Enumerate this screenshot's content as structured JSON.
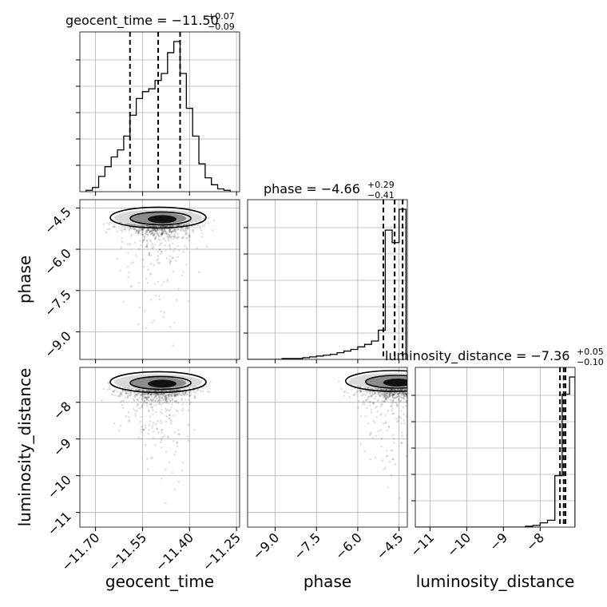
{
  "chart_data": {
    "type": "corner",
    "parameters": [
      "geocent_time",
      "phase",
      "luminosity_distance"
    ],
    "axis_labels": [
      "geocent_time",
      "phase",
      "luminosity_distance"
    ],
    "titles": [
      {
        "text": "geocent_time = −11.50",
        "sup": "+0.07",
        "sub": "−0.09"
      },
      {
        "text": "phase = −4.66",
        "sup": "+0.29",
        "sub": "−0.41"
      },
      {
        "text": "luminosity_distance = −7.36",
        "sup": "+0.05",
        "sub": "−0.10"
      }
    ],
    "ranges": [
      [
        -11.75,
        -11.24
      ],
      [
        -10.0,
        -4.2
      ],
      [
        -11.4,
        -7.05
      ]
    ],
    "ticks": [
      {
        "values": [
          -11.7,
          -11.55,
          -11.4,
          -11.25
        ],
        "labels": [
          "−11.70",
          "−11.55",
          "−11.40",
          "−11.25"
        ]
      },
      {
        "values": [
          -9.0,
          -7.5,
          -6.0,
          -4.5
        ],
        "labels": [
          "−9.0",
          "−7.5",
          "−6.0",
          "−4.5"
        ]
      },
      {
        "values": [
          -11,
          -10,
          -9,
          -8
        ],
        "labels": [
          "−11",
          "−10",
          "−9",
          "−8"
        ]
      }
    ],
    "quantiles": [
      [
        -11.59,
        -11.5,
        -11.43
      ],
      [
        -5.07,
        -4.66,
        -4.37
      ],
      [
        -7.46,
        -7.36,
        -7.31
      ]
    ],
    "histograms": [
      {
        "edges": [
          -11.73,
          -11.71,
          -11.69,
          -11.67,
          -11.65,
          -11.63,
          -11.61,
          -11.59,
          -11.57,
          -11.55,
          -11.53,
          -11.51,
          -11.49,
          -11.47,
          -11.45,
          -11.43,
          -11.41,
          -11.39,
          -11.37,
          -11.35,
          -11.33,
          -11.31,
          -11.29,
          -11.27
        ],
        "counts": [
          1,
          3,
          11,
          18,
          25,
          30,
          40,
          55,
          67,
          72,
          74,
          80,
          85,
          100,
          108,
          85,
          60,
          40,
          20,
          10,
          5,
          2,
          1
        ]
      },
      {
        "edges": [
          -10.0,
          -9.75,
          -9.5,
          -9.25,
          -9.0,
          -8.75,
          -8.5,
          -8.25,
          -8.0,
          -7.75,
          -7.5,
          -7.25,
          -7.0,
          -6.75,
          -6.5,
          -6.25,
          -6.0,
          -5.75,
          -5.5,
          -5.25,
          -5.0,
          -4.75,
          -4.5,
          -4.25
        ],
        "counts": [
          0,
          0,
          0,
          0,
          0,
          1,
          1,
          1,
          2,
          3,
          4,
          5,
          6,
          8,
          10,
          12,
          15,
          18,
          22,
          35,
          155,
          140,
          180
        ]
      },
      {
        "edges": [
          -11.4,
          -11.2,
          -11.0,
          -10.8,
          -10.6,
          -10.4,
          -10.2,
          -10.0,
          -9.8,
          -9.6,
          -9.4,
          -9.2,
          -9.0,
          -8.8,
          -8.6,
          -8.4,
          -8.2,
          -8.0,
          -7.8,
          -7.6,
          -7.4,
          -7.2,
          -7.05
        ],
        "counts": [
          0,
          0,
          0,
          0,
          0,
          0,
          0,
          0,
          0,
          0,
          0,
          0,
          0,
          0,
          0,
          1,
          2,
          5,
          8,
          60,
          155,
          175
        ]
      }
    ],
    "scatter_centers": {
      "geocent_time_phase": {
        "x": -11.5,
        "y": -4.85
      },
      "geocent_time_luminosity_distance": {
        "x": -11.5,
        "y": -7.45
      },
      "phase_luminosity_distance": {
        "x": -4.7,
        "y": -7.42
      }
    },
    "grid": true
  }
}
